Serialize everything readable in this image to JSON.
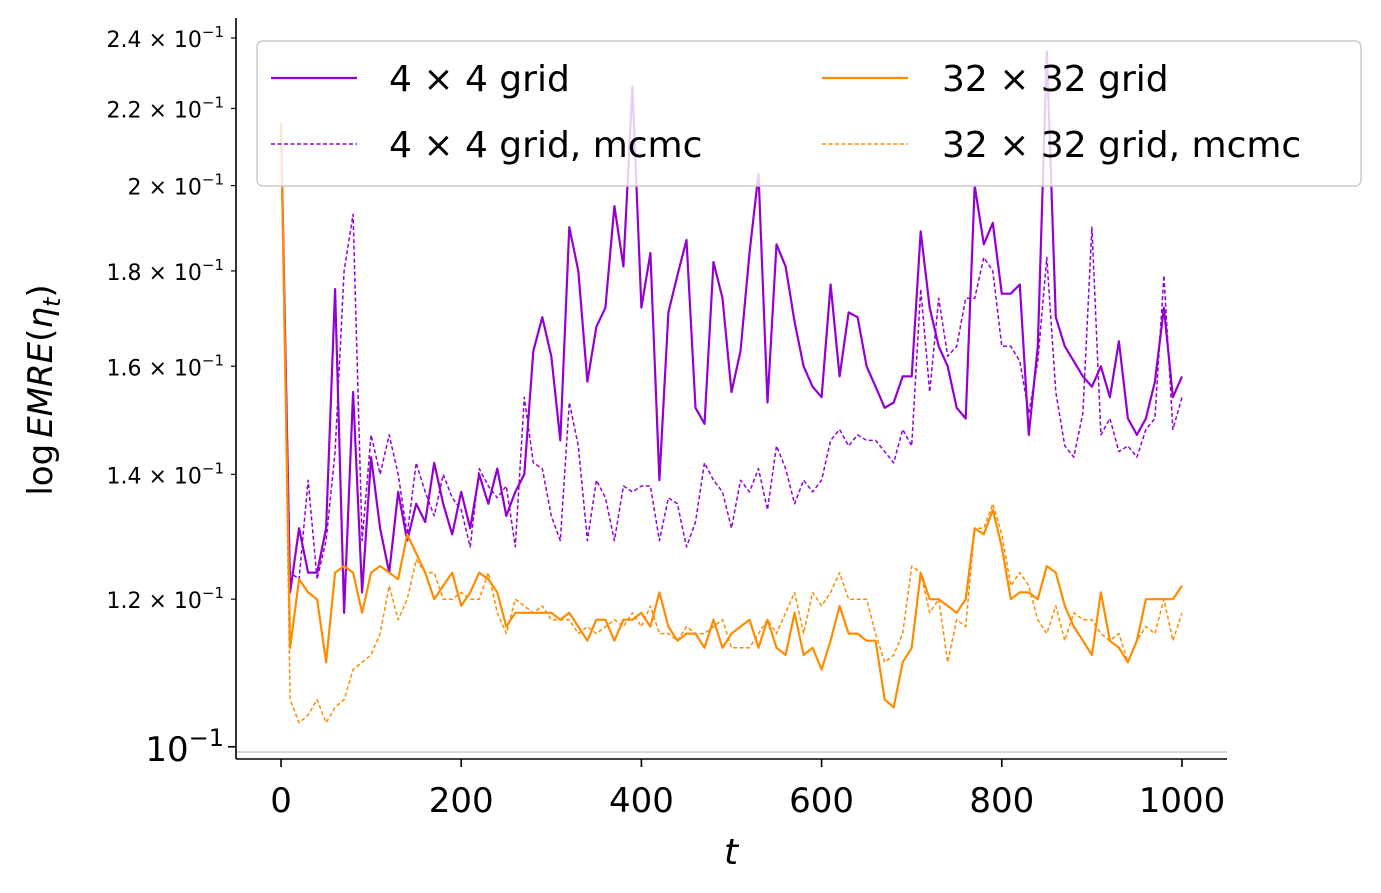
{
  "chart_data": {
    "type": "line",
    "xlabel": "t",
    "ylabel_parts": {
      "prefix": "log",
      "name": "EMRE",
      "open": "(",
      "eta": "η",
      "sub": "t",
      "close": ")"
    },
    "y_scale": "log",
    "xlim": [
      -50,
      1050
    ],
    "ylim": [
      0.0985,
      0.246
    ],
    "x_ticks": [
      {
        "value": 0,
        "label": "0"
      },
      {
        "value": 200,
        "label": "200"
      },
      {
        "value": 400,
        "label": "400"
      },
      {
        "value": 600,
        "label": "600"
      },
      {
        "value": 800,
        "label": "800"
      },
      {
        "value": 1000,
        "label": "1000"
      }
    ],
    "y_ticks": [
      {
        "value": 0.1,
        "base": "10",
        "exp": "−1",
        "big": true
      },
      {
        "value": 0.12,
        "mant": "1.2",
        "exp": "−1"
      },
      {
        "value": 0.14,
        "mant": "1.4",
        "exp": "−1"
      },
      {
        "value": 0.16,
        "mant": "1.6",
        "exp": "−1"
      },
      {
        "value": 0.18,
        "mant": "1.8",
        "exp": "−1"
      },
      {
        "value": 0.2,
        "mant": "2",
        "exp": "−1"
      },
      {
        "value": 0.22,
        "mant": "2.2",
        "exp": "−1"
      },
      {
        "value": 0.24,
        "mant": "2.4",
        "exp": "−1"
      }
    ],
    "legend_position": "top",
    "x": [
      0,
      10,
      20,
      30,
      40,
      50,
      60,
      70,
      80,
      90,
      100,
      110,
      120,
      130,
      140,
      150,
      160,
      170,
      180,
      190,
      200,
      210,
      220,
      230,
      240,
      250,
      260,
      270,
      280,
      290,
      300,
      310,
      320,
      330,
      340,
      350,
      360,
      370,
      380,
      390,
      400,
      410,
      420,
      430,
      440,
      450,
      460,
      470,
      480,
      490,
      500,
      510,
      520,
      530,
      540,
      550,
      560,
      570,
      580,
      590,
      600,
      610,
      620,
      630,
      640,
      650,
      660,
      670,
      680,
      690,
      700,
      710,
      720,
      730,
      740,
      750,
      760,
      770,
      780,
      790,
      800,
      810,
      820,
      830,
      840,
      850,
      860,
      870,
      880,
      890,
      900,
      910,
      920,
      930,
      940,
      950,
      960,
      970,
      980,
      990,
      1000
    ],
    "series": [
      {
        "name": "4 × 4 grid",
        "color": "#9400d3",
        "dash": false,
        "values": [
          0.216,
          0.121,
          0.131,
          0.124,
          0.124,
          0.131,
          0.176,
          0.118,
          0.155,
          0.121,
          0.143,
          0.131,
          0.124,
          0.137,
          0.129,
          0.135,
          0.132,
          0.142,
          0.135,
          0.13,
          0.137,
          0.131,
          0.14,
          0.135,
          0.141,
          0.133,
          0.137,
          0.14,
          0.163,
          0.17,
          0.162,
          0.146,
          0.19,
          0.18,
          0.157,
          0.168,
          0.172,
          0.195,
          0.181,
          0.226,
          0.172,
          0.184,
          0.139,
          0.171,
          0.179,
          0.187,
          0.152,
          0.149,
          0.182,
          0.174,
          0.155,
          0.163,
          0.184,
          0.203,
          0.153,
          0.186,
          0.181,
          0.169,
          0.16,
          0.156,
          0.154,
          0.177,
          0.158,
          0.171,
          0.17,
          0.16,
          0.156,
          0.152,
          0.153,
          0.158,
          0.158,
          0.189,
          0.172,
          0.164,
          0.16,
          0.152,
          0.15,
          0.2,
          0.186,
          0.191,
          0.175,
          0.175,
          0.177,
          0.147,
          0.164,
          0.236,
          0.17,
          0.164,
          0.161,
          0.158,
          0.156,
          0.16,
          0.154,
          0.165,
          0.15,
          0.147,
          0.15,
          0.157,
          0.172,
          0.154,
          0.158
        ]
      },
      {
        "name": "4 × 4 grid, mcmc",
        "color": "#9400d3",
        "dash": true,
        "values": [
          0.213,
          0.124,
          0.123,
          0.139,
          0.123,
          0.129,
          0.144,
          0.18,
          0.193,
          0.129,
          0.147,
          0.14,
          0.147,
          0.14,
          0.13,
          0.142,
          0.137,
          0.133,
          0.14,
          0.136,
          0.134,
          0.128,
          0.141,
          0.138,
          0.136,
          0.138,
          0.128,
          0.154,
          0.142,
          0.141,
          0.133,
          0.129,
          0.153,
          0.145,
          0.129,
          0.139,
          0.136,
          0.129,
          0.138,
          0.137,
          0.138,
          0.138,
          0.129,
          0.136,
          0.135,
          0.128,
          0.132,
          0.142,
          0.139,
          0.137,
          0.131,
          0.139,
          0.137,
          0.141,
          0.134,
          0.145,
          0.141,
          0.135,
          0.139,
          0.137,
          0.139,
          0.146,
          0.148,
          0.145,
          0.147,
          0.146,
          0.146,
          0.144,
          0.142,
          0.148,
          0.145,
          0.176,
          0.155,
          0.174,
          0.162,
          0.164,
          0.174,
          0.174,
          0.183,
          0.18,
          0.164,
          0.164,
          0.161,
          0.151,
          0.161,
          0.183,
          0.155,
          0.145,
          0.143,
          0.151,
          0.19,
          0.147,
          0.15,
          0.144,
          0.145,
          0.143,
          0.148,
          0.15,
          0.179,
          0.148,
          0.154
        ]
      },
      {
        "name": "32 × 32 grid",
        "color": "#ff8c00",
        "dash": false,
        "values": [
          0.216,
          0.113,
          0.123,
          0.121,
          0.12,
          0.111,
          0.124,
          0.125,
          0.124,
          0.118,
          0.124,
          0.125,
          0.124,
          0.123,
          0.13,
          0.127,
          0.124,
          0.12,
          0.122,
          0.124,
          0.119,
          0.121,
          0.124,
          0.123,
          0.121,
          0.116,
          0.118,
          0.118,
          0.118,
          0.118,
          0.118,
          0.117,
          0.118,
          0.116,
          0.114,
          0.117,
          0.117,
          0.114,
          0.117,
          0.117,
          0.118,
          0.116,
          0.121,
          0.116,
          0.114,
          0.115,
          0.115,
          0.113,
          0.117,
          0.113,
          0.115,
          0.116,
          0.117,
          0.113,
          0.117,
          0.113,
          0.112,
          0.118,
          0.112,
          0.113,
          0.11,
          0.114,
          0.119,
          0.115,
          0.115,
          0.114,
          0.114,
          0.106,
          0.105,
          0.111,
          0.113,
          0.124,
          0.12,
          0.12,
          0.119,
          0.118,
          0.12,
          0.131,
          0.13,
          0.134,
          0.128,
          0.12,
          0.121,
          0.121,
          0.12,
          0.125,
          0.124,
          0.119,
          0.116,
          0.114,
          0.112,
          0.121,
          0.114,
          0.113,
          0.111,
          0.114,
          0.12,
          0.12,
          0.12,
          0.12,
          0.122
        ]
      },
      {
        "name": "32 × 32 grid, mcmc",
        "color": "#ff8c00",
        "dash": true,
        "values": [
          0.216,
          0.106,
          0.103,
          0.104,
          0.106,
          0.103,
          0.105,
          0.106,
          0.11,
          0.111,
          0.112,
          0.115,
          0.122,
          0.117,
          0.12,
          0.126,
          0.124,
          0.124,
          0.12,
          0.12,
          0.121,
          0.12,
          0.12,
          0.124,
          0.118,
          0.115,
          0.12,
          0.119,
          0.118,
          0.119,
          0.117,
          0.117,
          0.117,
          0.115,
          0.116,
          0.115,
          0.116,
          0.117,
          0.116,
          0.118,
          0.116,
          0.119,
          0.115,
          0.115,
          0.114,
          0.116,
          0.115,
          0.115,
          0.116,
          0.117,
          0.113,
          0.113,
          0.113,
          0.115,
          0.117,
          0.115,
          0.118,
          0.121,
          0.115,
          0.121,
          0.119,
          0.121,
          0.124,
          0.12,
          0.12,
          0.12,
          0.115,
          0.111,
          0.112,
          0.115,
          0.125,
          0.124,
          0.118,
          0.12,
          0.111,
          0.117,
          0.116,
          0.131,
          0.131,
          0.135,
          0.13,
          0.122,
          0.124,
          0.122,
          0.117,
          0.115,
          0.119,
          0.114,
          0.118,
          0.117,
          0.117,
          0.115,
          0.114,
          0.115,
          0.111,
          0.114,
          0.116,
          0.115,
          0.12,
          0.114,
          0.118
        ]
      }
    ]
  }
}
